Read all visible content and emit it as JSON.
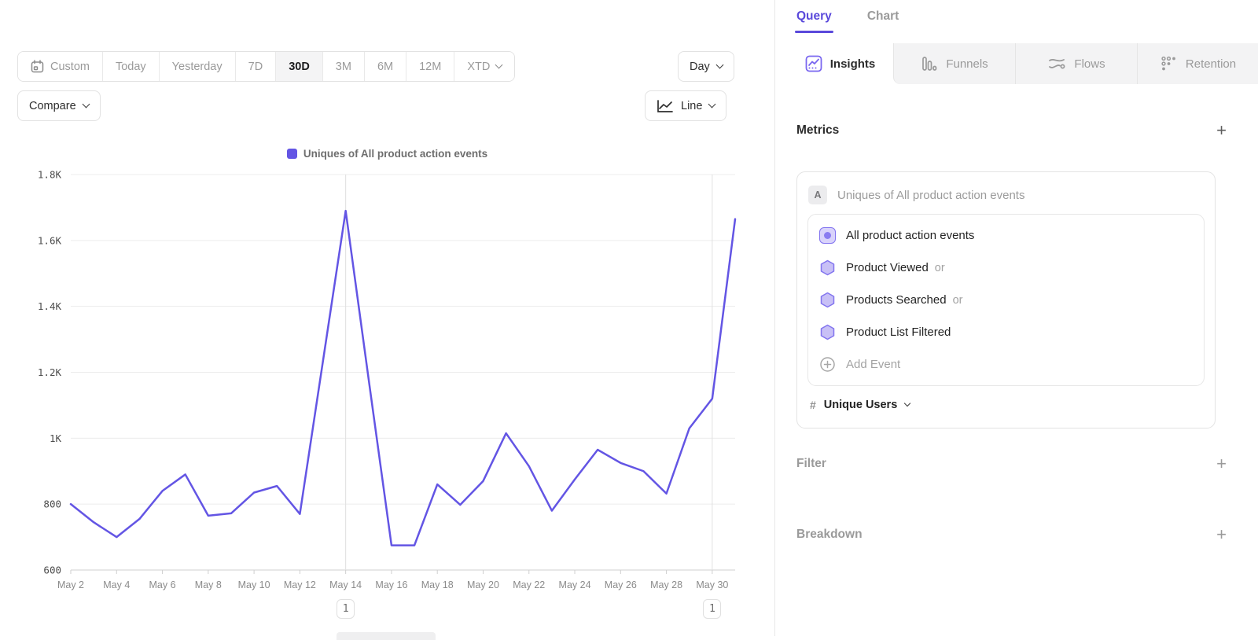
{
  "toolbar": {
    "ranges": [
      "Custom",
      "Today",
      "Yesterday",
      "7D",
      "30D",
      "3M",
      "6M",
      "12M",
      "XTD"
    ],
    "active_range": "30D",
    "granularity": "Day",
    "compare_label": "Compare",
    "chart_type_label": "Line"
  },
  "chart_data": {
    "type": "line",
    "legend": "Uniques of All product action events",
    "line_color": "#6355e4",
    "ylim": [
      600,
      1800
    ],
    "y_ticks": [
      {
        "value": 1800,
        "label": "1.8K"
      },
      {
        "value": 1600,
        "label": "1.6K"
      },
      {
        "value": 1400,
        "label": "1.4K"
      },
      {
        "value": 1200,
        "label": "1.2K"
      },
      {
        "value": 1000,
        "label": "1K"
      },
      {
        "value": 800,
        "label": "800"
      },
      {
        "value": 600,
        "label": "600"
      }
    ],
    "x": [
      "May 2",
      "May 3",
      "May 4",
      "May 5",
      "May 6",
      "May 7",
      "May 8",
      "May 9",
      "May 10",
      "May 11",
      "May 12",
      "May 13",
      "May 14",
      "May 15",
      "May 16",
      "May 17",
      "May 18",
      "May 19",
      "May 20",
      "May 21",
      "May 22",
      "May 23",
      "May 24",
      "May 25",
      "May 26",
      "May 27",
      "May 28",
      "May 29",
      "May 30",
      "May 31"
    ],
    "x_tick_every": 2,
    "values": [
      800,
      745,
      700,
      755,
      840,
      890,
      765,
      772,
      835,
      855,
      770,
      1230,
      1690,
      1180,
      675,
      675,
      860,
      798,
      870,
      1015,
      915,
      780,
      875,
      965,
      925,
      900,
      832,
      1030,
      1120,
      1665
    ],
    "annotations": [
      {
        "x": "May 14",
        "label": "1"
      },
      {
        "x": "May 30",
        "label": "1"
      }
    ]
  },
  "panel": {
    "header_tabs": [
      "Query",
      "Chart"
    ],
    "active_header_tab": "Query",
    "view_tabs": [
      "Insights",
      "Funnels",
      "Flows",
      "Retention"
    ],
    "active_view_tab": "Insights",
    "metrics": {
      "title": "Metrics",
      "add_label": "+",
      "group_badge": "A",
      "group_label": "Uniques of All product action events",
      "events": [
        {
          "label": "All product action events",
          "suffix": ""
        },
        {
          "label": "Product Viewed",
          "suffix": "or"
        },
        {
          "label": "Products Searched",
          "suffix": "or"
        },
        {
          "label": "Product List Filtered",
          "suffix": ""
        },
        {
          "label": "Add Event",
          "suffix": ""
        }
      ],
      "measurement_prefix": "#",
      "measurement": "Unique Users"
    },
    "filter": {
      "title": "Filter",
      "add_label": "+"
    },
    "breakdown": {
      "title": "Breakdown",
      "add_label": "+"
    }
  }
}
